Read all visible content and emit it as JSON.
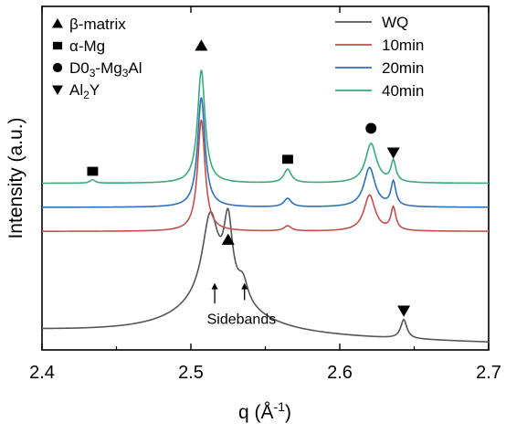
{
  "chart_data": {
    "type": "line",
    "title": "",
    "xlabel": "q (Å",
    "xlabel_sup": "-1",
    "xlabel_close": ")",
    "ylabel": "Intensity (a.u.)",
    "xlim": [
      2.4,
      2.7
    ],
    "x_ticks": [
      "2.4",
      "2.5",
      "2.6",
      "2.7"
    ],
    "y_ticks": [],
    "ylim": [
      0,
      10
    ],
    "grid": false,
    "legend_position": "top-right",
    "series": [
      {
        "name": "WQ",
        "color": "#555555",
        "offset": 0.3,
        "baseline_start": 0.25,
        "baseline_end": -0.1,
        "peaks": [
          {
            "center": 2.513,
            "amp": 2.35,
            "width": 0.0065
          },
          {
            "center": 2.525,
            "amp": 2.05,
            "width": 0.0035
          },
          {
            "center": 2.535,
            "amp": 0.6,
            "width": 0.004
          },
          {
            "center": 2.518,
            "amp": 1.1,
            "width": 0.03
          },
          {
            "center": 2.643,
            "amp": 0.55,
            "width": 0.0025
          }
        ]
      },
      {
        "name": "10min",
        "color": "#c0504d",
        "offset": 3.45,
        "baseline_start": 0.0,
        "baseline_end": 0.0,
        "peaks": [
          {
            "center": 2.507,
            "amp": 3.25,
            "width": 0.003
          },
          {
            "center": 2.565,
            "amp": 0.15,
            "width": 0.003
          },
          {
            "center": 2.62,
            "amp": 1.05,
            "width": 0.0045
          },
          {
            "center": 2.636,
            "amp": 0.65,
            "width": 0.002
          }
        ]
      },
      {
        "name": "20min",
        "color": "#2e6fbb",
        "offset": 4.15,
        "baseline_start": 0.0,
        "baseline_end": 0.0,
        "peaks": [
          {
            "center": 2.507,
            "amp": 3.2,
            "width": 0.003
          },
          {
            "center": 2.565,
            "amp": 0.25,
            "width": 0.003
          },
          {
            "center": 2.62,
            "amp": 1.15,
            "width": 0.0045
          },
          {
            "center": 2.636,
            "amp": 0.7,
            "width": 0.002
          }
        ]
      },
      {
        "name": "40min",
        "color": "#3aaa7a",
        "offset": 4.85,
        "baseline_start": 0.0,
        "baseline_end": 0.0,
        "peaks": [
          {
            "center": 2.434,
            "amp": 0.1,
            "width": 0.002
          },
          {
            "center": 2.507,
            "amp": 3.3,
            "width": 0.003
          },
          {
            "center": 2.565,
            "amp": 0.4,
            "width": 0.003
          },
          {
            "center": 2.621,
            "amp": 1.15,
            "width": 0.0045
          },
          {
            "center": 2.636,
            "amp": 0.6,
            "width": 0.002
          }
        ]
      }
    ],
    "phase_legend": [
      {
        "symbol": "triangle-up",
        "label": "β-matrix"
      },
      {
        "symbol": "square",
        "label": "α-Mg"
      },
      {
        "symbol": "circle",
        "label": "D0",
        "sub1": "3",
        "mid": "-Mg",
        "sub2": "3",
        "tail": "Al"
      },
      {
        "symbol": "triangle-down",
        "label": "Al",
        "sub1": "2",
        "tail": "Y"
      }
    ],
    "markers": [
      {
        "symbol": "triangle-up",
        "x": 2.507,
        "y": 8.85
      },
      {
        "symbol": "square",
        "x": 2.434,
        "y": 5.2
      },
      {
        "symbol": "square",
        "x": 2.565,
        "y": 5.55
      },
      {
        "symbol": "circle",
        "x": 2.621,
        "y": 6.45
      },
      {
        "symbol": "triangle-down",
        "x": 2.636,
        "y": 5.75
      },
      {
        "symbol": "triangle-up",
        "x": 2.525,
        "y": 3.2
      },
      {
        "symbol": "triangle-down",
        "x": 2.643,
        "y": 1.15
      }
    ],
    "annotations": [
      {
        "text": "Sidebands",
        "x": 2.534,
        "y": 0.92
      },
      {
        "arrow_x": 2.516,
        "y_from": 1.35,
        "y_to": 1.95
      },
      {
        "arrow_x": 2.536,
        "y_from": 1.45,
        "y_to": 1.95
      }
    ]
  }
}
